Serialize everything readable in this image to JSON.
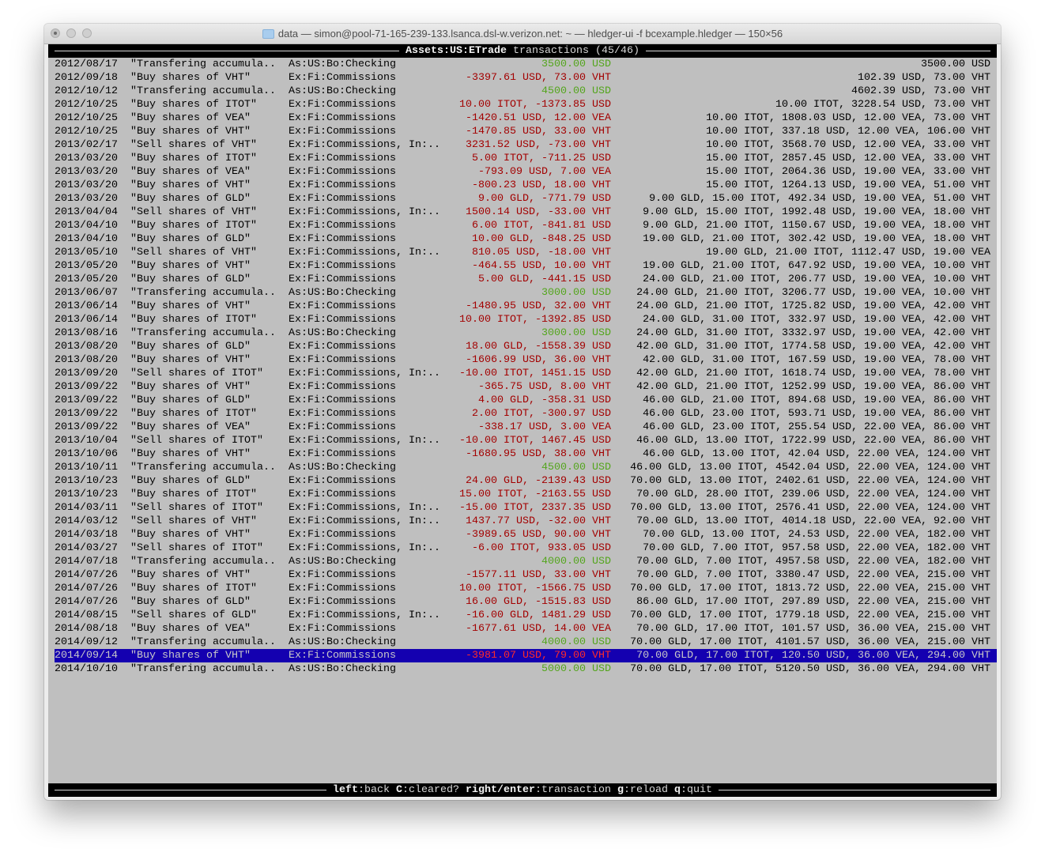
{
  "window": {
    "title": "data — simon@pool-71-165-239-133.lsanca.dsl-w.verizon.net: ~ — hledger-ui -f bcexample.hledger — 150×56",
    "folder_icon": "folder-icon"
  },
  "header": {
    "account": "Assets:US:ETrade",
    "suffix": " transactions (45/46)"
  },
  "colors": {
    "positive": "#53a51c",
    "negative": "#a30000",
    "selection": "#1400b0",
    "background": "#bfbfbf"
  },
  "selected_index": 44,
  "rows": [
    {
      "date": "2012/08/17",
      "desc": "\"Transfering accumula..",
      "account": "As:US:Bo:Checking",
      "amount": "3500.00 USD",
      "sign": "positive",
      "balance": "3500.00 USD"
    },
    {
      "date": "2012/09/18",
      "desc": "\"Buy shares of VHT\"",
      "account": "Ex:Fi:Commissions",
      "amount": "-3397.61 USD, 73.00 VHT",
      "sign": "negative",
      "balance": "102.39 USD, 73.00 VHT"
    },
    {
      "date": "2012/10/12",
      "desc": "\"Transfering accumula..",
      "account": "As:US:Bo:Checking",
      "amount": "4500.00 USD",
      "sign": "positive",
      "balance": "4602.39 USD, 73.00 VHT"
    },
    {
      "date": "2012/10/25",
      "desc": "\"Buy shares of ITOT\"",
      "account": "Ex:Fi:Commissions",
      "amount": "10.00 ITOT, -1373.85 USD",
      "sign": "negative",
      "balance": "10.00 ITOT, 3228.54 USD, 73.00 VHT"
    },
    {
      "date": "2012/10/25",
      "desc": "\"Buy shares of VEA\"",
      "account": "Ex:Fi:Commissions",
      "amount": "-1420.51 USD, 12.00 VEA",
      "sign": "negative",
      "balance": "10.00 ITOT, 1808.03 USD, 12.00 VEA, 73.00 VHT"
    },
    {
      "date": "2012/10/25",
      "desc": "\"Buy shares of VHT\"",
      "account": "Ex:Fi:Commissions",
      "amount": "-1470.85 USD, 33.00 VHT",
      "sign": "negative",
      "balance": "10.00 ITOT, 337.18 USD, 12.00 VEA, 106.00 VHT"
    },
    {
      "date": "2013/02/17",
      "desc": "\"Sell shares of VHT\"",
      "account": "Ex:Fi:Commissions, In:..",
      "amount": "3231.52 USD, -73.00 VHT",
      "sign": "negative",
      "balance": "10.00 ITOT, 3568.70 USD, 12.00 VEA, 33.00 VHT"
    },
    {
      "date": "2013/03/20",
      "desc": "\"Buy shares of ITOT\"",
      "account": "Ex:Fi:Commissions",
      "amount": "5.00 ITOT, -711.25 USD",
      "sign": "negative",
      "balance": "15.00 ITOT, 2857.45 USD, 12.00 VEA, 33.00 VHT"
    },
    {
      "date": "2013/03/20",
      "desc": "\"Buy shares of VEA\"",
      "account": "Ex:Fi:Commissions",
      "amount": "-793.09 USD, 7.00 VEA",
      "sign": "negative",
      "balance": "15.00 ITOT, 2064.36 USD, 19.00 VEA, 33.00 VHT"
    },
    {
      "date": "2013/03/20",
      "desc": "\"Buy shares of VHT\"",
      "account": "Ex:Fi:Commissions",
      "amount": "-800.23 USD, 18.00 VHT",
      "sign": "negative",
      "balance": "15.00 ITOT, 1264.13 USD, 19.00 VEA, 51.00 VHT"
    },
    {
      "date": "2013/03/20",
      "desc": "\"Buy shares of GLD\"",
      "account": "Ex:Fi:Commissions",
      "amount": "9.00 GLD, -771.79 USD",
      "sign": "negative",
      "balance": "9.00 GLD, 15.00 ITOT, 492.34 USD, 19.00 VEA, 51.00 VHT"
    },
    {
      "date": "2013/04/04",
      "desc": "\"Sell shares of VHT\"",
      "account": "Ex:Fi:Commissions, In:..",
      "amount": "1500.14 USD, -33.00 VHT",
      "sign": "negative",
      "balance": "9.00 GLD, 15.00 ITOT, 1992.48 USD, 19.00 VEA, 18.00 VHT"
    },
    {
      "date": "2013/04/10",
      "desc": "\"Buy shares of ITOT\"",
      "account": "Ex:Fi:Commissions",
      "amount": "6.00 ITOT, -841.81 USD",
      "sign": "negative",
      "balance": "9.00 GLD, 21.00 ITOT, 1150.67 USD, 19.00 VEA, 18.00 VHT"
    },
    {
      "date": "2013/04/10",
      "desc": "\"Buy shares of GLD\"",
      "account": "Ex:Fi:Commissions",
      "amount": "10.00 GLD, -848.25 USD",
      "sign": "negative",
      "balance": "19.00 GLD, 21.00 ITOT, 302.42 USD, 19.00 VEA, 18.00 VHT"
    },
    {
      "date": "2013/05/10",
      "desc": "\"Sell shares of VHT\"",
      "account": "Ex:Fi:Commissions, In:..",
      "amount": "810.05 USD, -18.00 VHT",
      "sign": "negative",
      "balance": "19.00 GLD, 21.00 ITOT, 1112.47 USD, 19.00 VEA"
    },
    {
      "date": "2013/05/20",
      "desc": "\"Buy shares of VHT\"",
      "account": "Ex:Fi:Commissions",
      "amount": "-464.55 USD, 10.00 VHT",
      "sign": "negative",
      "balance": "19.00 GLD, 21.00 ITOT, 647.92 USD, 19.00 VEA, 10.00 VHT"
    },
    {
      "date": "2013/05/20",
      "desc": "\"Buy shares of GLD\"",
      "account": "Ex:Fi:Commissions",
      "amount": "5.00 GLD, -441.15 USD",
      "sign": "negative",
      "balance": "24.00 GLD, 21.00 ITOT, 206.77 USD, 19.00 VEA, 10.00 VHT"
    },
    {
      "date": "2013/06/07",
      "desc": "\"Transfering accumula..",
      "account": "As:US:Bo:Checking",
      "amount": "3000.00 USD",
      "sign": "positive",
      "balance": "24.00 GLD, 21.00 ITOT, 3206.77 USD, 19.00 VEA, 10.00 VHT"
    },
    {
      "date": "2013/06/14",
      "desc": "\"Buy shares of VHT\"",
      "account": "Ex:Fi:Commissions",
      "amount": "-1480.95 USD, 32.00 VHT",
      "sign": "negative",
      "balance": "24.00 GLD, 21.00 ITOT, 1725.82 USD, 19.00 VEA, 42.00 VHT"
    },
    {
      "date": "2013/06/14",
      "desc": "\"Buy shares of ITOT\"",
      "account": "Ex:Fi:Commissions",
      "amount": "10.00 ITOT, -1392.85 USD",
      "sign": "negative",
      "balance": "24.00 GLD, 31.00 ITOT, 332.97 USD, 19.00 VEA, 42.00 VHT"
    },
    {
      "date": "2013/08/16",
      "desc": "\"Transfering accumula..",
      "account": "As:US:Bo:Checking",
      "amount": "3000.00 USD",
      "sign": "positive",
      "balance": "24.00 GLD, 31.00 ITOT, 3332.97 USD, 19.00 VEA, 42.00 VHT"
    },
    {
      "date": "2013/08/20",
      "desc": "\"Buy shares of GLD\"",
      "account": "Ex:Fi:Commissions",
      "amount": "18.00 GLD, -1558.39 USD",
      "sign": "negative",
      "balance": "42.00 GLD, 31.00 ITOT, 1774.58 USD, 19.00 VEA, 42.00 VHT"
    },
    {
      "date": "2013/08/20",
      "desc": "\"Buy shares of VHT\"",
      "account": "Ex:Fi:Commissions",
      "amount": "-1606.99 USD, 36.00 VHT",
      "sign": "negative",
      "balance": "42.00 GLD, 31.00 ITOT, 167.59 USD, 19.00 VEA, 78.00 VHT"
    },
    {
      "date": "2013/09/20",
      "desc": "\"Sell shares of ITOT\"",
      "account": "Ex:Fi:Commissions, In:..",
      "amount": "-10.00 ITOT, 1451.15 USD",
      "sign": "negative",
      "balance": "42.00 GLD, 21.00 ITOT, 1618.74 USD, 19.00 VEA, 78.00 VHT"
    },
    {
      "date": "2013/09/22",
      "desc": "\"Buy shares of VHT\"",
      "account": "Ex:Fi:Commissions",
      "amount": "-365.75 USD, 8.00 VHT",
      "sign": "negative",
      "balance": "42.00 GLD, 21.00 ITOT, 1252.99 USD, 19.00 VEA, 86.00 VHT"
    },
    {
      "date": "2013/09/22",
      "desc": "\"Buy shares of GLD\"",
      "account": "Ex:Fi:Commissions",
      "amount": "4.00 GLD, -358.31 USD",
      "sign": "negative",
      "balance": "46.00 GLD, 21.00 ITOT, 894.68 USD, 19.00 VEA, 86.00 VHT"
    },
    {
      "date": "2013/09/22",
      "desc": "\"Buy shares of ITOT\"",
      "account": "Ex:Fi:Commissions",
      "amount": "2.00 ITOT, -300.97 USD",
      "sign": "negative",
      "balance": "46.00 GLD, 23.00 ITOT, 593.71 USD, 19.00 VEA, 86.00 VHT"
    },
    {
      "date": "2013/09/22",
      "desc": "\"Buy shares of VEA\"",
      "account": "Ex:Fi:Commissions",
      "amount": "-338.17 USD, 3.00 VEA",
      "sign": "negative",
      "balance": "46.00 GLD, 23.00 ITOT, 255.54 USD, 22.00 VEA, 86.00 VHT"
    },
    {
      "date": "2013/10/04",
      "desc": "\"Sell shares of ITOT\"",
      "account": "Ex:Fi:Commissions, In:..",
      "amount": "-10.00 ITOT, 1467.45 USD",
      "sign": "negative",
      "balance": "46.00 GLD, 13.00 ITOT, 1722.99 USD, 22.00 VEA, 86.00 VHT"
    },
    {
      "date": "2013/10/06",
      "desc": "\"Buy shares of VHT\"",
      "account": "Ex:Fi:Commissions",
      "amount": "-1680.95 USD, 38.00 VHT",
      "sign": "negative",
      "balance": "46.00 GLD, 13.00 ITOT, 42.04 USD, 22.00 VEA, 124.00 VHT"
    },
    {
      "date": "2013/10/11",
      "desc": "\"Transfering accumula..",
      "account": "As:US:Bo:Checking",
      "amount": "4500.00 USD",
      "sign": "positive",
      "balance": "46.00 GLD, 13.00 ITOT, 4542.04 USD, 22.00 VEA, 124.00 VHT"
    },
    {
      "date": "2013/10/23",
      "desc": "\"Buy shares of GLD\"",
      "account": "Ex:Fi:Commissions",
      "amount": "24.00 GLD, -2139.43 USD",
      "sign": "negative",
      "balance": "70.00 GLD, 13.00 ITOT, 2402.61 USD, 22.00 VEA, 124.00 VHT"
    },
    {
      "date": "2013/10/23",
      "desc": "\"Buy shares of ITOT\"",
      "account": "Ex:Fi:Commissions",
      "amount": "15.00 ITOT, -2163.55 USD",
      "sign": "negative",
      "balance": "70.00 GLD, 28.00 ITOT, 239.06 USD, 22.00 VEA, 124.00 VHT"
    },
    {
      "date": "2014/03/11",
      "desc": "\"Sell shares of ITOT\"",
      "account": "Ex:Fi:Commissions, In:..",
      "amount": "-15.00 ITOT, 2337.35 USD",
      "sign": "negative",
      "balance": "70.00 GLD, 13.00 ITOT, 2576.41 USD, 22.00 VEA, 124.00 VHT"
    },
    {
      "date": "2014/03/12",
      "desc": "\"Sell shares of VHT\"",
      "account": "Ex:Fi:Commissions, In:..",
      "amount": "1437.77 USD, -32.00 VHT",
      "sign": "negative",
      "balance": "70.00 GLD, 13.00 ITOT, 4014.18 USD, 22.00 VEA, 92.00 VHT"
    },
    {
      "date": "2014/03/18",
      "desc": "\"Buy shares of VHT\"",
      "account": "Ex:Fi:Commissions",
      "amount": "-3989.65 USD, 90.00 VHT",
      "sign": "negative",
      "balance": "70.00 GLD, 13.00 ITOT, 24.53 USD, 22.00 VEA, 182.00 VHT"
    },
    {
      "date": "2014/03/27",
      "desc": "\"Sell shares of ITOT\"",
      "account": "Ex:Fi:Commissions, In:..",
      "amount": "-6.00 ITOT, 933.05 USD",
      "sign": "negative",
      "balance": "70.00 GLD, 7.00 ITOT, 957.58 USD, 22.00 VEA, 182.00 VHT"
    },
    {
      "date": "2014/07/18",
      "desc": "\"Transfering accumula..",
      "account": "As:US:Bo:Checking",
      "amount": "4000.00 USD",
      "sign": "positive",
      "balance": "70.00 GLD, 7.00 ITOT, 4957.58 USD, 22.00 VEA, 182.00 VHT"
    },
    {
      "date": "2014/07/26",
      "desc": "\"Buy shares of VHT\"",
      "account": "Ex:Fi:Commissions",
      "amount": "-1577.11 USD, 33.00 VHT",
      "sign": "negative",
      "balance": "70.00 GLD, 7.00 ITOT, 3380.47 USD, 22.00 VEA, 215.00 VHT"
    },
    {
      "date": "2014/07/26",
      "desc": "\"Buy shares of ITOT\"",
      "account": "Ex:Fi:Commissions",
      "amount": "10.00 ITOT, -1566.75 USD",
      "sign": "negative",
      "balance": "70.00 GLD, 17.00 ITOT, 1813.72 USD, 22.00 VEA, 215.00 VHT"
    },
    {
      "date": "2014/07/26",
      "desc": "\"Buy shares of GLD\"",
      "account": "Ex:Fi:Commissions",
      "amount": "16.00 GLD, -1515.83 USD",
      "sign": "negative",
      "balance": "86.00 GLD, 17.00 ITOT, 297.89 USD, 22.00 VEA, 215.00 VHT"
    },
    {
      "date": "2014/08/15",
      "desc": "\"Sell shares of GLD\"",
      "account": "Ex:Fi:Commissions, In:..",
      "amount": "-16.00 GLD, 1481.29 USD",
      "sign": "negative",
      "balance": "70.00 GLD, 17.00 ITOT, 1779.18 USD, 22.00 VEA, 215.00 VHT"
    },
    {
      "date": "2014/08/18",
      "desc": "\"Buy shares of VEA\"",
      "account": "Ex:Fi:Commissions",
      "amount": "-1677.61 USD, 14.00 VEA",
      "sign": "negative",
      "balance": "70.00 GLD, 17.00 ITOT, 101.57 USD, 36.00 VEA, 215.00 VHT"
    },
    {
      "date": "2014/09/12",
      "desc": "\"Transfering accumula..",
      "account": "As:US:Bo:Checking",
      "amount": "4000.00 USD",
      "sign": "positive",
      "balance": "70.00 GLD, 17.00 ITOT, 4101.57 USD, 36.00 VEA, 215.00 VHT"
    },
    {
      "date": "2014/09/14",
      "desc": "\"Buy shares of VHT\"",
      "account": "Ex:Fi:Commissions",
      "amount": "-3981.07 USD, 79.00 VHT",
      "sign": "negative",
      "balance": "70.00 GLD, 17.00 ITOT, 120.50 USD, 36.00 VEA, 294.00 VHT"
    },
    {
      "date": "2014/10/10",
      "desc": "\"Transfering accumula..",
      "account": "As:US:Bo:Checking",
      "amount": "5000.00 USD",
      "sign": "positive",
      "balance": "70.00 GLD, 17.00 ITOT, 5120.50 USD, 36.00 VEA, 294.00 VHT"
    }
  ],
  "footer": {
    "keys": [
      {
        "key": "left",
        "action": ":back"
      },
      {
        "key": "C",
        "action": ":cleared?"
      },
      {
        "key": "right/enter",
        "action": ":transaction"
      },
      {
        "key": "g",
        "action": ":reload"
      },
      {
        "key": "q",
        "action": ":quit"
      }
    ]
  }
}
